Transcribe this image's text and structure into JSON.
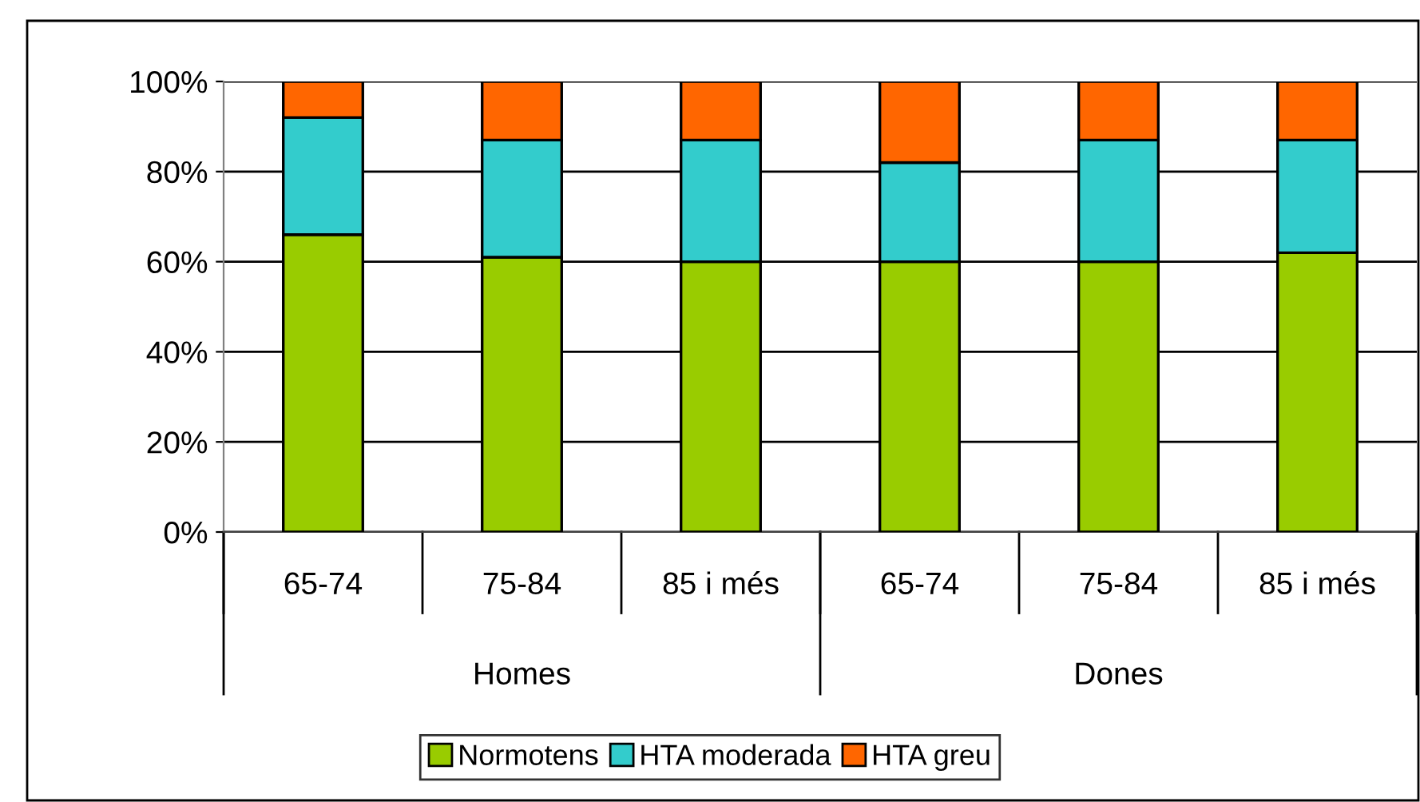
{
  "chart_data": {
    "type": "bar",
    "stacked": true,
    "categories": [
      "65-74",
      "75-84",
      "85 i més",
      "65-74",
      "75-84",
      "85 i més"
    ],
    "series": [
      {
        "name": "Normotens",
        "color": "#99cc00",
        "values": [
          66,
          61,
          60,
          60,
          60,
          62
        ]
      },
      {
        "name": "HTA moderada",
        "color": "#33cccc",
        "values": [
          26,
          26,
          27,
          22,
          27,
          25
        ]
      },
      {
        "name": "HTA greu",
        "color": "#ff6600",
        "values": [
          8,
          13,
          13,
          18,
          13,
          13
        ]
      }
    ],
    "annotations": [
      "Homes",
      "Dones"
    ],
    "ylim": [
      0,
      100
    ],
    "yticks": [
      {
        "value": 0,
        "label": "0%"
      },
      {
        "value": 20,
        "label": "20%"
      },
      {
        "value": 40,
        "label": "40%"
      },
      {
        "value": 60,
        "label": "60%"
      },
      {
        "value": 80,
        "label": "80%"
      },
      {
        "value": 100,
        "label": "100%"
      }
    ],
    "grid": "y",
    "legend": "bottom"
  }
}
